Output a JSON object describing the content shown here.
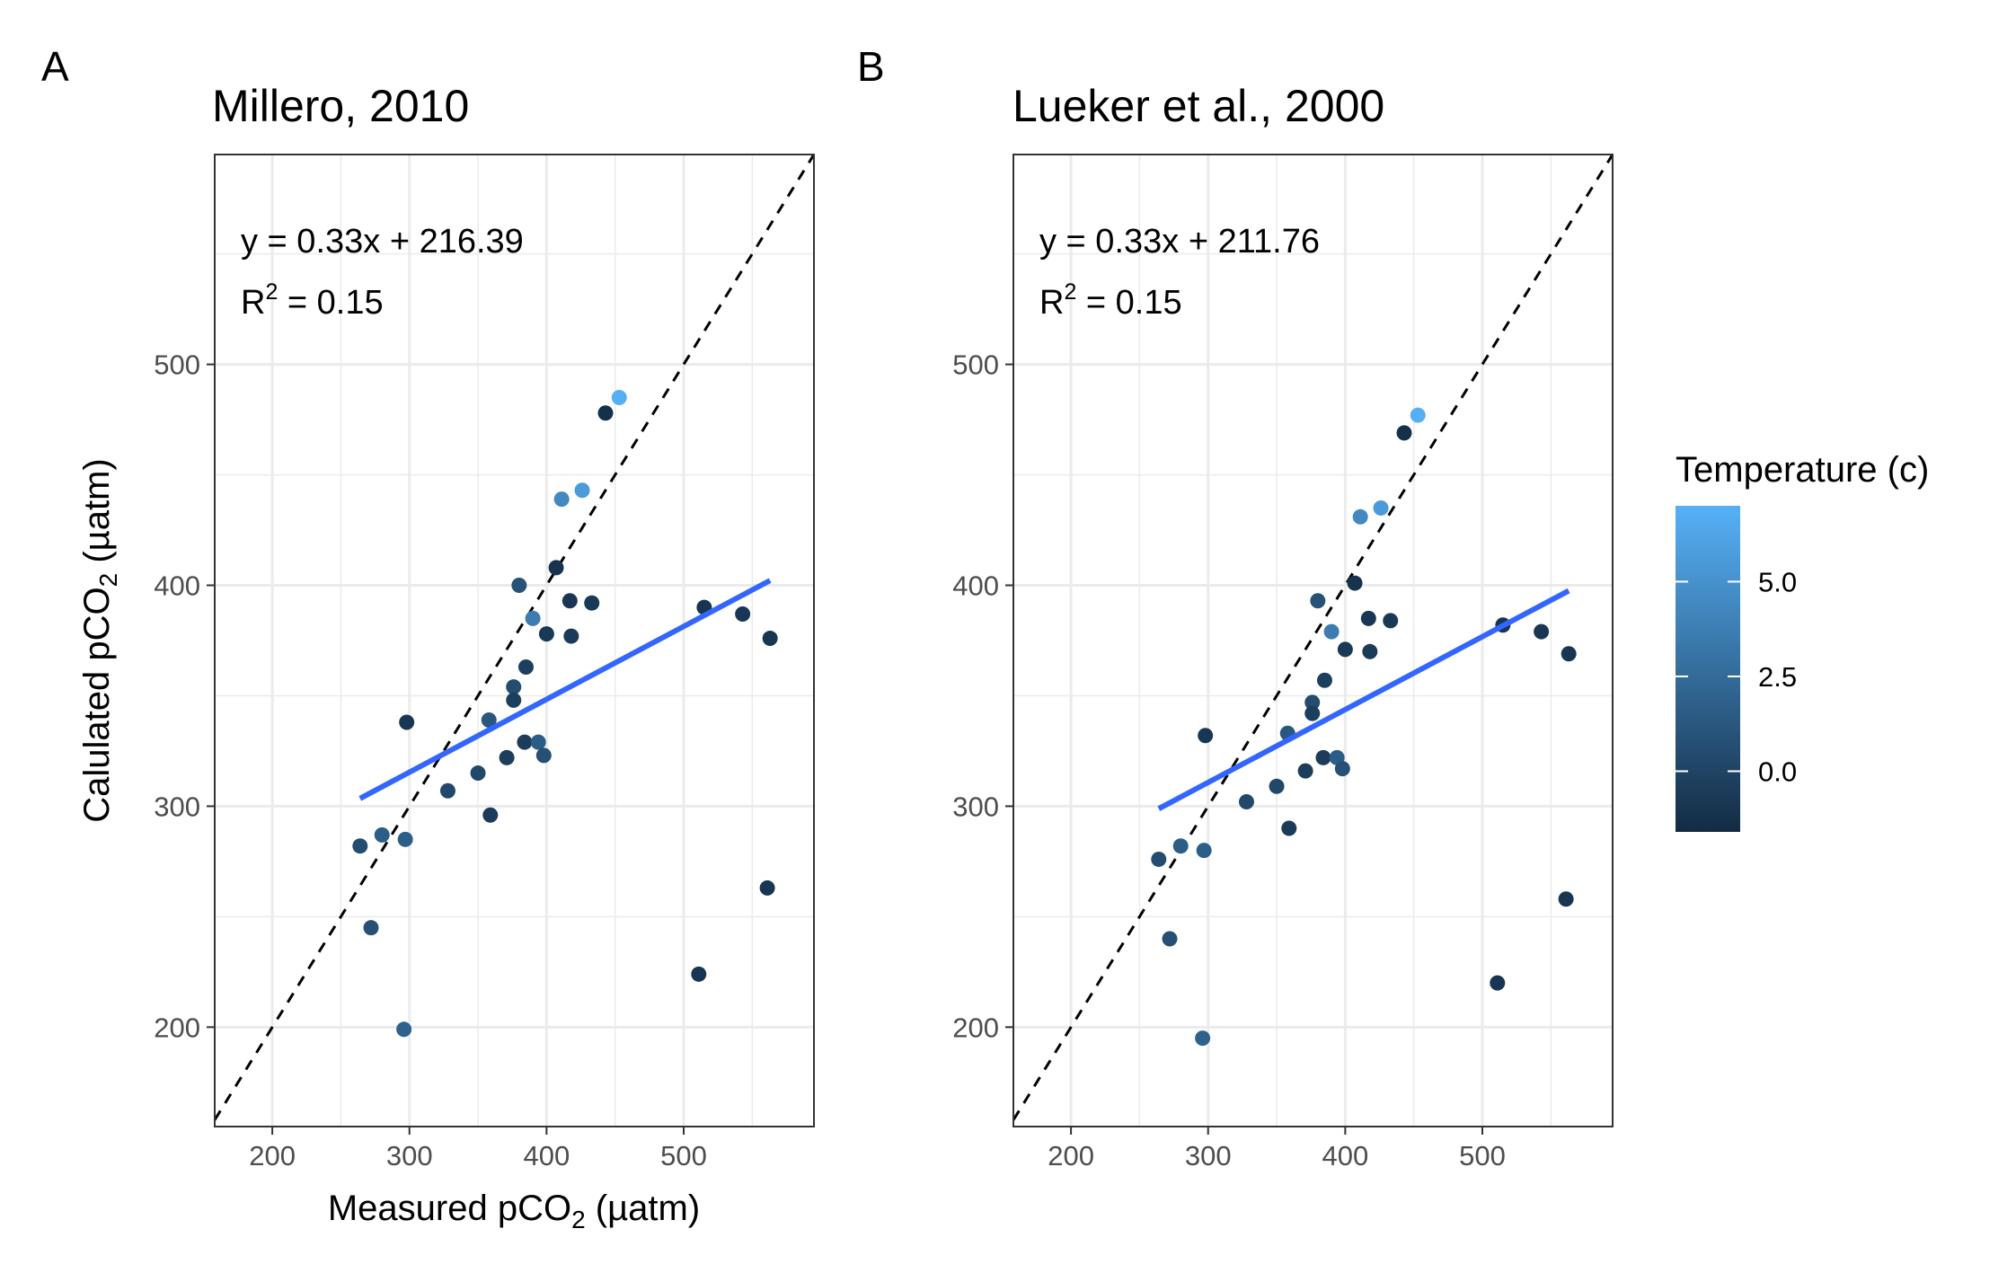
{
  "chart_data": [
    {
      "type": "scatter",
      "panel_label": "A",
      "title": "Millero, 2010",
      "xlabel": "Measured pCO",
      "xlabel_sub": "2",
      "xlabel_tail": " (µatm)",
      "ylabel": "Calulated pCO",
      "ylabel_sub": "2",
      "ylabel_tail": " (µatm)",
      "xlim": [
        158,
        595
      ],
      "ylim": [
        155,
        595
      ],
      "xticks": [
        200,
        300,
        400,
        500
      ],
      "yticks": [
        200,
        300,
        400,
        500
      ],
      "grid": true,
      "equation": "y = 0.33x + 216.39",
      "r2_prefix": "R",
      "r2_sup": "2",
      "r2_value": " = 0.15",
      "identity_line": true,
      "fit": {
        "slope": 0.33,
        "intercept": 216.39,
        "x_range": [
          264,
          563
        ],
        "color": "#3366ff"
      },
      "points": [
        {
          "x": 264,
          "y": 282,
          "t": 0.5
        },
        {
          "x": 272,
          "y": 245,
          "t": 0.8
        },
        {
          "x": 280,
          "y": 287,
          "t": 1.6
        },
        {
          "x": 296,
          "y": 199,
          "t": 1.9
        },
        {
          "x": 297,
          "y": 285,
          "t": 1.7
        },
        {
          "x": 298,
          "y": 338,
          "t": -0.8
        },
        {
          "x": 328,
          "y": 307,
          "t": 0.3
        },
        {
          "x": 350,
          "y": 315,
          "t": 0.2
        },
        {
          "x": 358,
          "y": 339,
          "t": 1.2
        },
        {
          "x": 359,
          "y": 296,
          "t": -0.6
        },
        {
          "x": 371,
          "y": 322,
          "t": -0.4
        },
        {
          "x": 376,
          "y": 354,
          "t": 0.5
        },
        {
          "x": 376,
          "y": 348,
          "t": -0.3
        },
        {
          "x": 380,
          "y": 400,
          "t": 0.9
        },
        {
          "x": 384,
          "y": 329,
          "t": -0.5
        },
        {
          "x": 385,
          "y": 363,
          "t": -0.3
        },
        {
          "x": 390,
          "y": 385,
          "t": 3.6
        },
        {
          "x": 394,
          "y": 329,
          "t": 1.6
        },
        {
          "x": 398,
          "y": 323,
          "t": 0.8
        },
        {
          "x": 400,
          "y": 378,
          "t": -0.7
        },
        {
          "x": 407,
          "y": 408,
          "t": -1.1
        },
        {
          "x": 411,
          "y": 439,
          "t": 4.4
        },
        {
          "x": 417,
          "y": 393,
          "t": -0.8
        },
        {
          "x": 418,
          "y": 377,
          "t": -0.6
        },
        {
          "x": 426,
          "y": 443,
          "t": 5.6
        },
        {
          "x": 433,
          "y": 392,
          "t": -0.7
        },
        {
          "x": 443,
          "y": 478,
          "t": -1.3
        },
        {
          "x": 453,
          "y": 485,
          "t": 6.9
        },
        {
          "x": 511,
          "y": 224,
          "t": -0.9
        },
        {
          "x": 515,
          "y": 390,
          "t": -1.0
        },
        {
          "x": 543,
          "y": 387,
          "t": -0.8
        },
        {
          "x": 561,
          "y": 263,
          "t": -0.9
        },
        {
          "x": 563,
          "y": 376,
          "t": -0.9
        }
      ]
    },
    {
      "type": "scatter",
      "panel_label": "B",
      "title": "Lueker et al., 2000",
      "xlabel": "",
      "ylabel": "",
      "xlim": [
        158,
        595
      ],
      "ylim": [
        155,
        595
      ],
      "xticks": [
        200,
        300,
        400,
        500
      ],
      "yticks": [
        200,
        300,
        400,
        500
      ],
      "grid": true,
      "equation": "y = 0.33x + 211.76",
      "r2_prefix": "R",
      "r2_sup": "2",
      "r2_value": " = 0.15",
      "identity_line": true,
      "fit": {
        "slope": 0.33,
        "intercept": 211.76,
        "x_range": [
          264,
          563
        ],
        "color": "#3366ff"
      },
      "points": [
        {
          "x": 264,
          "y": 276,
          "t": 0.5
        },
        {
          "x": 272,
          "y": 240,
          "t": 0.8
        },
        {
          "x": 280,
          "y": 282,
          "t": 1.6
        },
        {
          "x": 296,
          "y": 195,
          "t": 1.9
        },
        {
          "x": 297,
          "y": 280,
          "t": 1.7
        },
        {
          "x": 298,
          "y": 332,
          "t": -0.8
        },
        {
          "x": 328,
          "y": 302,
          "t": 0.3
        },
        {
          "x": 350,
          "y": 309,
          "t": 0.2
        },
        {
          "x": 358,
          "y": 333,
          "t": 1.2
        },
        {
          "x": 359,
          "y": 290,
          "t": -0.6
        },
        {
          "x": 371,
          "y": 316,
          "t": -0.4
        },
        {
          "x": 376,
          "y": 347,
          "t": 0.5
        },
        {
          "x": 376,
          "y": 342,
          "t": -0.3
        },
        {
          "x": 380,
          "y": 393,
          "t": 0.9
        },
        {
          "x": 384,
          "y": 322,
          "t": -0.5
        },
        {
          "x": 385,
          "y": 357,
          "t": -0.3
        },
        {
          "x": 390,
          "y": 379,
          "t": 3.6
        },
        {
          "x": 394,
          "y": 322,
          "t": 1.6
        },
        {
          "x": 398,
          "y": 317,
          "t": 0.8
        },
        {
          "x": 400,
          "y": 371,
          "t": -0.7
        },
        {
          "x": 407,
          "y": 401,
          "t": -1.1
        },
        {
          "x": 411,
          "y": 431,
          "t": 4.4
        },
        {
          "x": 417,
          "y": 385,
          "t": -0.8
        },
        {
          "x": 418,
          "y": 370,
          "t": -0.6
        },
        {
          "x": 426,
          "y": 435,
          "t": 5.6
        },
        {
          "x": 433,
          "y": 384,
          "t": -0.7
        },
        {
          "x": 443,
          "y": 469,
          "t": -1.3
        },
        {
          "x": 453,
          "y": 477,
          "t": 6.9
        },
        {
          "x": 511,
          "y": 220,
          "t": -0.9
        },
        {
          "x": 515,
          "y": 382,
          "t": -1.0
        },
        {
          "x": 543,
          "y": 379,
          "t": -0.8
        },
        {
          "x": 561,
          "y": 258,
          "t": -0.9
        },
        {
          "x": 563,
          "y": 369,
          "t": -0.9
        }
      ]
    }
  ],
  "legend": {
    "title": "Temperature (c)",
    "breaks": [
      0.0,
      2.5,
      5.0
    ],
    "break_labels": [
      "0.0",
      "2.5",
      "5.0"
    ],
    "range": [
      -1.6,
      7.0
    ],
    "low_color": "#132b43",
    "high_color": "#56b1f7",
    "placement": "right"
  }
}
